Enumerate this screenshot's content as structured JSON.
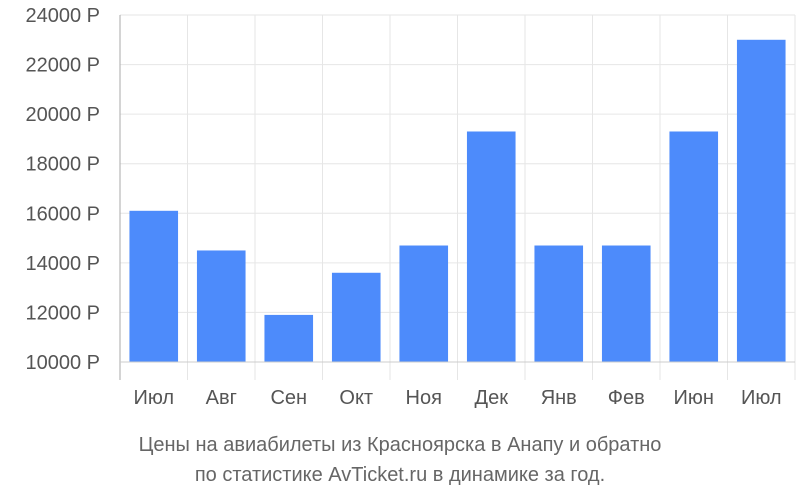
{
  "chart_data": {
    "type": "bar",
    "categories": [
      "Июл",
      "Авг",
      "Сен",
      "Окт",
      "Ноя",
      "Дек",
      "Янв",
      "Фев",
      "Июн",
      "Июл"
    ],
    "values": [
      16100,
      14500,
      11900,
      13600,
      14700,
      19300,
      14700,
      14700,
      19300,
      23000
    ],
    "ylim": [
      10000,
      24000
    ],
    "yticks": [
      10000,
      12000,
      14000,
      16000,
      18000,
      20000,
      22000,
      24000
    ],
    "y_unit": "Р",
    "grid": true,
    "bar_color": "#4d8bfb",
    "grid_color": "#e6e6e6",
    "axis_color": "#aaaaaa",
    "text_color": "#555555"
  },
  "caption": {
    "line1": "Цены на авиабилеты из Красноярска в Анапу и обратно",
    "line2": "по статистике AvTicket.ru в динамике за год."
  }
}
